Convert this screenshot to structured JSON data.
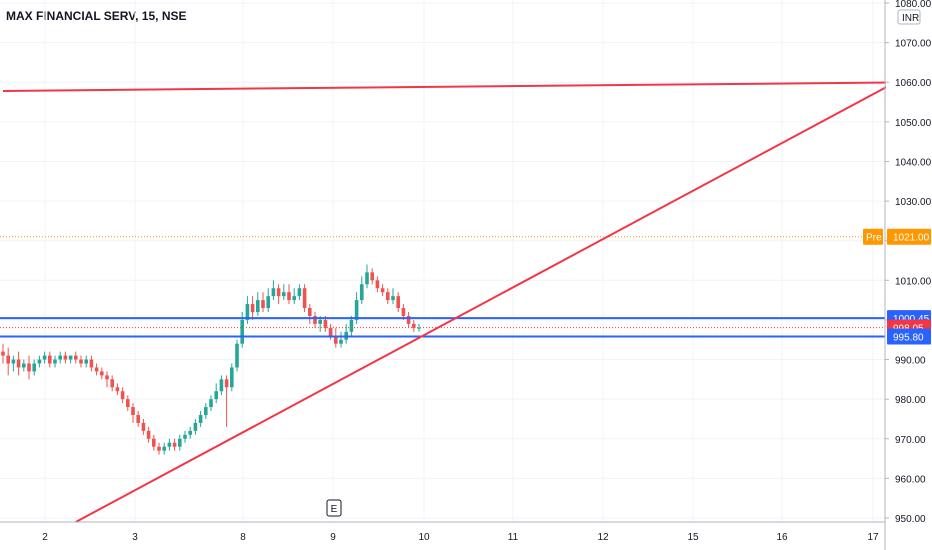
{
  "chart_data": {
    "type": "candlestick",
    "title": "MAX FINANCIAL SERV, 15, NSE",
    "currency_label": "INR",
    "ylim": [
      950,
      1080
    ],
    "y_ticks": [
      950,
      960,
      970,
      980,
      990,
      1000,
      1010,
      1020,
      1030,
      1040,
      1050,
      1060,
      1070,
      1080
    ],
    "y_tick_labels": [
      "950.00",
      "960.00",
      "970.00",
      "980.00",
      "990.00",
      "1000.00",
      "1010.00",
      "1020.00",
      "1030.00",
      "1040.00",
      "1050.00",
      "1060.00",
      "1070.00",
      "1080.00"
    ],
    "x_ticks": [
      "2",
      "3",
      "8",
      "9",
      "10",
      "11",
      "12",
      "15",
      "16",
      "17"
    ],
    "grid": true,
    "candles": [
      [
        992,
        991,
        994,
        989
      ],
      [
        991,
        989,
        993,
        986
      ],
      [
        989,
        990,
        991,
        987
      ],
      [
        990,
        988,
        992,
        986
      ],
      [
        988,
        989,
        990,
        987
      ],
      [
        989,
        987,
        991,
        985
      ],
      [
        987,
        989,
        990,
        986
      ],
      [
        989,
        990,
        991,
        988
      ],
      [
        990,
        991,
        992,
        989
      ],
      [
        991,
        989,
        992,
        988
      ],
      [
        989,
        990,
        991,
        988
      ],
      [
        990,
        991,
        992,
        989
      ],
      [
        991,
        990,
        992,
        989
      ],
      [
        990,
        991,
        991,
        989
      ],
      [
        991,
        990,
        992,
        989
      ],
      [
        990,
        989,
        991,
        988
      ],
      [
        989,
        990,
        991,
        988
      ],
      [
        990,
        988,
        991,
        987
      ],
      [
        988,
        987,
        989,
        986
      ],
      [
        987,
        986,
        988,
        985
      ],
      [
        986,
        985,
        987,
        983
      ],
      [
        985,
        983,
        986,
        982
      ],
      [
        983,
        982,
        984,
        981
      ],
      [
        982,
        980,
        983,
        979
      ],
      [
        980,
        978,
        981,
        977
      ],
      [
        978,
        976,
        979,
        974
      ],
      [
        976,
        974,
        977,
        973
      ],
      [
        974,
        972,
        975,
        971
      ],
      [
        972,
        970,
        973,
        969
      ],
      [
        970,
        968,
        971,
        967
      ],
      [
        968,
        967,
        969,
        966
      ],
      [
        967,
        968,
        969,
        966
      ],
      [
        968,
        969,
        970,
        967
      ],
      [
        969,
        968,
        970,
        967
      ],
      [
        968,
        970,
        971,
        967
      ],
      [
        970,
        971,
        972,
        969
      ],
      [
        971,
        972,
        973,
        970
      ],
      [
        972,
        974,
        975,
        971
      ],
      [
        974,
        976,
        977,
        973
      ],
      [
        976,
        978,
        979,
        975
      ],
      [
        978,
        980,
        981,
        977
      ],
      [
        980,
        982,
        984,
        979
      ],
      [
        982,
        985,
        986,
        981
      ],
      [
        985,
        983,
        986,
        973
      ],
      [
        983,
        988,
        989,
        982
      ],
      [
        988,
        994,
        995,
        987
      ],
      [
        994,
        1000,
        1002,
        993
      ],
      [
        1000,
        1004,
        1006,
        999
      ],
      [
        1004,
        1002,
        1006,
        1000
      ],
      [
        1002,
        1005,
        1007,
        1001
      ],
      [
        1005,
        1003,
        1007,
        1002
      ],
      [
        1003,
        1006,
        1008,
        1002
      ],
      [
        1006,
        1008,
        1010,
        1005
      ],
      [
        1008,
        1006,
        1009,
        1004
      ],
      [
        1006,
        1007,
        1009,
        1005
      ],
      [
        1007,
        1005,
        1009,
        1004
      ],
      [
        1005,
        1006,
        1008,
        1004
      ],
      [
        1006,
        1008,
        1009,
        1005
      ],
      [
        1008,
        1003,
        1009,
        1002
      ],
      [
        1003,
        1001,
        1004,
        999
      ],
      [
        1001,
        999,
        1002,
        998
      ],
      [
        999,
        1000,
        1001,
        997
      ],
      [
        1000,
        998,
        1001,
        997
      ],
      [
        998,
        996,
        999,
        995
      ],
      [
        996,
        994,
        998,
        993
      ],
      [
        994,
        995,
        997,
        993
      ],
      [
        995,
        997,
        999,
        994
      ],
      [
        997,
        1000,
        1001,
        996
      ],
      [
        1000,
        1005,
        1007,
        999
      ],
      [
        1005,
        1009,
        1011,
        1004
      ],
      [
        1009,
        1012,
        1014,
        1008
      ],
      [
        1012,
        1010,
        1013,
        1009
      ],
      [
        1010,
        1008,
        1011,
        1007
      ],
      [
        1008,
        1007,
        1009,
        1006
      ],
      [
        1007,
        1005,
        1008,
        1004
      ],
      [
        1005,
        1006,
        1008,
        1004
      ],
      [
        1006,
        1003,
        1007,
        1002
      ],
      [
        1003,
        1001,
        1004,
        1000
      ],
      [
        1001,
        999,
        1002,
        998
      ],
      [
        999,
        998,
        1000,
        997
      ],
      [
        998,
        998.05,
        999,
        997
      ]
    ],
    "horizontal_lines": [
      {
        "value": 1000.45,
        "label": "1000.45",
        "color": "#2962ff"
      },
      {
        "value": 995.8,
        "label": "995.80",
        "color": "#2962ff"
      }
    ],
    "premarket": {
      "badge": "Pre",
      "value": 1021.0,
      "label": "1021.00",
      "color": "#ff9800"
    },
    "last_price": {
      "value": 998.05,
      "label": "998.05",
      "color": "#f23645"
    },
    "trend_lines": [
      {
        "from": {
          "x_index": 0,
          "y": 1057.8
        },
        "to": {
          "x_index": 200,
          "y": 1060.3
        },
        "color": "#f23645"
      },
      {
        "from": {
          "x_index": 14,
          "y": 949
        },
        "to": {
          "x_index": 200,
          "y": 1080
        },
        "color": "#f23645"
      }
    ],
    "event_marker": "E",
    "up_color": "#26a69a",
    "down_color": "#ef5350"
  }
}
